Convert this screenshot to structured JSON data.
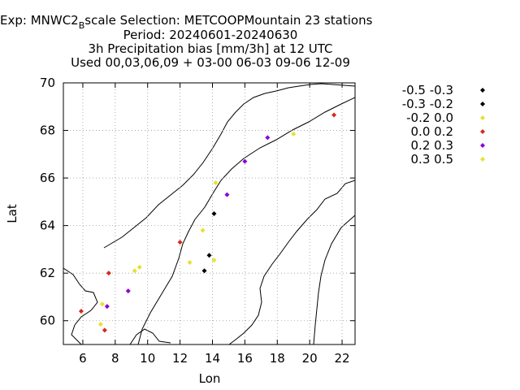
{
  "chart_data": {
    "type": "scatter",
    "title_lines": [
      "Exp: MNWC2",
      "B",
      "scale   Selection: METCOOPMountain     23 stations",
      "Period: 20240601-20240630",
      "3h Precipitation bias [mm/3h] at  12 UTC",
      "Used 00,03,06,09 + 03-00 06-03 09-06 12-09"
    ],
    "xlabel": "Lon",
    "ylabel": "Lat",
    "xlim": [
      4.8,
      22.8
    ],
    "ylim": [
      59,
      70
    ],
    "xticks": [
      "6",
      "8",
      "10",
      "12",
      "14",
      "16",
      "18",
      "20",
      "22"
    ],
    "xtick_values": [
      6,
      8,
      10,
      12,
      14,
      16,
      18,
      20,
      22
    ],
    "yticks": [
      "60",
      "62",
      "64",
      "66",
      "68",
      "70"
    ],
    "ytick_values": [
      60,
      62,
      64,
      66,
      68,
      70
    ],
    "grid": true,
    "legend_position": "right",
    "series": [
      {
        "name": "-0.5 -0.3",
        "color": "#000000",
        "points": []
      },
      {
        "name": "-0.3 -0.2",
        "color": "#000000",
        "points": [
          [
            14.1,
            64.5
          ],
          [
            13.8,
            62.75
          ],
          [
            13.5,
            62.1
          ]
        ]
      },
      {
        "name": "-0.2 0.0",
        "color": "#e8e030",
        "points": [
          [
            14.2,
            65.8
          ],
          [
            13.4,
            63.8
          ],
          [
            14.1,
            62.55
          ],
          [
            12.6,
            62.45
          ],
          [
            9.2,
            62.1
          ],
          [
            9.5,
            62.25
          ],
          [
            7.1,
            59.85
          ],
          [
            7.2,
            60.7
          ],
          [
            19.0,
            67.85
          ]
        ]
      },
      {
        "name": "0.0 0.2",
        "color": "#d42a1c",
        "points": [
          [
            21.5,
            68.65
          ],
          [
            12.0,
            63.3
          ],
          [
            7.6,
            62.0
          ],
          [
            5.9,
            60.4
          ],
          [
            7.35,
            59.6
          ]
        ]
      },
      {
        "name": "0.2 0.3",
        "color": "#8a00d4",
        "points": [
          [
            17.4,
            67.7
          ],
          [
            16.0,
            66.7
          ],
          [
            14.9,
            65.3
          ],
          [
            8.8,
            61.25
          ],
          [
            7.5,
            60.6
          ]
        ]
      },
      {
        "name": "0.3 0.5",
        "color": "#e8e030",
        "points": []
      }
    ]
  }
}
